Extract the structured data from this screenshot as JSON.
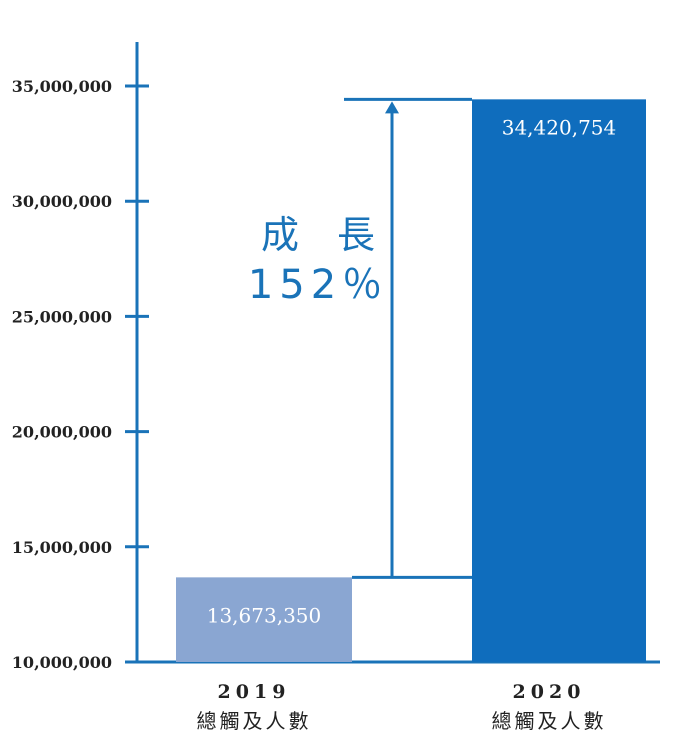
{
  "chart_data": {
    "type": "bar",
    "categories": [
      {
        "year": "2019",
        "label": "總觸及人數"
      },
      {
        "year": "2020",
        "label": "總觸及人數"
      }
    ],
    "values": [
      13673350,
      34420754
    ],
    "value_labels": [
      "13,673,350",
      "34,420,754"
    ],
    "ylim": [
      10000000,
      35000000
    ],
    "yticks": [
      10000000,
      15000000,
      20000000,
      25000000,
      30000000,
      35000000
    ],
    "ytick_labels": [
      "10,000,000",
      "15,000,000",
      "20,000,000",
      "25,000,000",
      "30,000,000",
      "35,000,000"
    ],
    "annotation": {
      "line1": "成　長",
      "line2": "152％"
    },
    "colors": {
      "axis": "#1a73b8",
      "bar_2019": "#8aa6d2",
      "bar_2020": "#0f6dbd",
      "bar_label": "#ffffff",
      "annotation": "#1a73b8",
      "tick_text": "#222222"
    },
    "grid": false,
    "legend": "none"
  }
}
